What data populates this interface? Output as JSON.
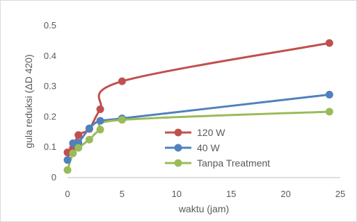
{
  "chart_data": {
    "type": "line",
    "title": "",
    "xlabel": "waktu (jam)",
    "ylabel": "gula reduksi (ΔD 420)",
    "xlim": [
      0,
      25
    ],
    "ylim": [
      0,
      0.5
    ],
    "x_ticks": [
      "0",
      "5",
      "10",
      "15",
      "20",
      "25"
    ],
    "y_ticks": [
      "0",
      "0.1",
      "0.2",
      "0.3",
      "0.4",
      "0.5"
    ],
    "grid": false,
    "legend_position": "center-right",
    "series": [
      {
        "name": "120 W",
        "color": "#c0504d",
        "x": [
          0,
          0.5,
          1,
          2,
          3,
          5,
          24
        ],
        "y": [
          0.083,
          0.097,
          0.14,
          0.16,
          0.225,
          0.317,
          0.443
        ]
      },
      {
        "name": "40 W",
        "color": "#4f81bd",
        "x": [
          0,
          0.5,
          1,
          2,
          3,
          5,
          24
        ],
        "y": [
          0.058,
          0.113,
          0.115,
          0.162,
          0.187,
          0.195,
          0.273
        ]
      },
      {
        "name": "Tanpa Treatment",
        "color": "#9bbb59",
        "x": [
          0,
          0.5,
          1,
          2,
          3,
          5,
          24
        ],
        "y": [
          0.025,
          0.08,
          0.098,
          0.125,
          0.158,
          0.19,
          0.217
        ]
      }
    ]
  }
}
